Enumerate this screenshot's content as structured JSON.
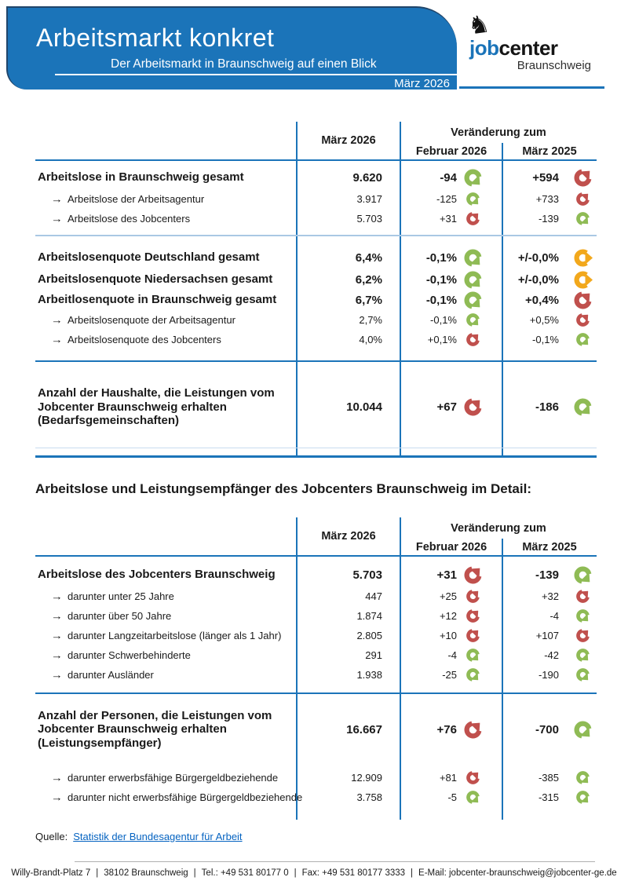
{
  "header": {
    "title": "Arbeitsmarkt konkret",
    "subtitle": "Der Arbeitsmarkt in Braunschweig auf einen Blick",
    "period": "März 2026",
    "logo": {
      "word_blue": "job",
      "word_black": "center",
      "city": "Braunschweig",
      "emblem_icon": "braunschweig-lion-icon"
    }
  },
  "colors": {
    "primary_blue": "#1b74b9",
    "light_blue": "#aac8e4",
    "trend_up_red": "#c0504d",
    "trend_down_green": "#8fbb55",
    "trend_neutral_yellow": "#f2a81c",
    "link_blue": "#0563c1"
  },
  "columns": {
    "current": "März 2026",
    "change_title": "Veränderung zum",
    "prev_month": "Februar 2026",
    "prev_year": "März 2025"
  },
  "table1": {
    "groups": [
      {
        "rows": [
          {
            "style": "bold",
            "label": "Arbeitslose in Braunschweig gesamt",
            "current": "9.620",
            "prev_month": {
              "value": "-94",
              "trend": "down"
            },
            "prev_year": {
              "value": "+594",
              "trend": "up"
            }
          },
          {
            "style": "sub",
            "label": "Arbeitslose der Arbeitsagentur",
            "current": "3.917",
            "prev_month": {
              "value": "-125",
              "trend": "down"
            },
            "prev_year": {
              "value": "+733",
              "trend": "up"
            }
          },
          {
            "style": "sub",
            "label": "Arbeitslose des Jobcenters",
            "current": "5.703",
            "prev_month": {
              "value": "+31",
              "trend": "up"
            },
            "prev_year": {
              "value": "-139",
              "trend": "down"
            }
          }
        ]
      },
      {
        "rows": [
          {
            "style": "bold",
            "label": "Arbeitslosenquote Deutschland gesamt",
            "current": "6,4%",
            "prev_month": {
              "value": "-0,1%",
              "trend": "down"
            },
            "prev_year": {
              "value": "+/-0,0%",
              "trend": "neutral"
            }
          },
          {
            "style": "bold",
            "label": "Arbeitslosenquote Niedersachsen gesamt",
            "current": "6,2%",
            "prev_month": {
              "value": "-0,1%",
              "trend": "down"
            },
            "prev_year": {
              "value": "+/-0,0%",
              "trend": "neutral"
            }
          },
          {
            "style": "bold",
            "label": "Arbeitlosenquote in Braunschweig gesamt",
            "current": "6,7%",
            "prev_month": {
              "value": "-0,1%",
              "trend": "down"
            },
            "prev_year": {
              "value": "+0,4%",
              "trend": "up"
            }
          },
          {
            "style": "sub",
            "label": "Arbeitslosenquote der Arbeitsagentur",
            "current": "2,7%",
            "prev_month": {
              "value": "-0,1%",
              "trend": "down"
            },
            "prev_year": {
              "value": "+0,5%",
              "trend": "up"
            }
          },
          {
            "style": "sub",
            "label": "Arbeitslosenquote des Jobcenters",
            "current": "4,0%",
            "prev_month": {
              "value": "+0,1%",
              "trend": "up"
            },
            "prev_year": {
              "value": "-0,1%",
              "trend": "down"
            }
          }
        ]
      },
      {
        "rows": [
          {
            "style": "block",
            "label": "Anzahl der Haushalte, die Leistungen vom Jobcenter Braunschweig erhalten (Bedarfsgemeinschaften)",
            "current": "10.044",
            "prev_month": {
              "value": "+67",
              "trend": "up"
            },
            "prev_year": {
              "value": "-186",
              "trend": "down"
            }
          }
        ]
      }
    ]
  },
  "section_title": "Arbeitslose und Leistungsempfänger des Jobcenters Braunschweig im Detail:",
  "table2": {
    "groups": [
      {
        "rows": [
          {
            "style": "bold",
            "label": "Arbeitslose des Jobcenters Braunschweig",
            "current": "5.703",
            "prev_month": {
              "value": "+31",
              "trend": "up"
            },
            "prev_year": {
              "value": "-139",
              "trend": "down"
            }
          },
          {
            "style": "sub",
            "label": "darunter unter 25 Jahre",
            "current": "447",
            "prev_month": {
              "value": "+25",
              "trend": "up"
            },
            "prev_year": {
              "value": "+32",
              "trend": "up"
            }
          },
          {
            "style": "sub",
            "label": "darunter über 50 Jahre",
            "current": "1.874",
            "prev_month": {
              "value": "+12",
              "trend": "up"
            },
            "prev_year": {
              "value": "-4",
              "trend": "down"
            }
          },
          {
            "style": "sub",
            "label": "darunter Langzeitarbeitslose (länger als 1 Jahr)",
            "current": "2.805",
            "prev_month": {
              "value": "+10",
              "trend": "up"
            },
            "prev_year": {
              "value": "+107",
              "trend": "up"
            }
          },
          {
            "style": "sub",
            "label": "darunter Schwerbehinderte",
            "current": "291",
            "prev_month": {
              "value": "-4",
              "trend": "down"
            },
            "prev_year": {
              "value": "-42",
              "trend": "down"
            }
          },
          {
            "style": "sub",
            "label": "darunter Ausländer",
            "current": "1.938",
            "prev_month": {
              "value": "-25",
              "trend": "down"
            },
            "prev_year": {
              "value": "-190",
              "trend": "down"
            }
          }
        ]
      },
      {
        "rows": [
          {
            "style": "block",
            "label": "Anzahl der Personen, die Leistungen vom Jobcenter Braunschweig erhalten (Leistungsempfänger)",
            "current": "16.667",
            "prev_month": {
              "value": "+76",
              "trend": "up"
            },
            "prev_year": {
              "value": "-700",
              "trend": "down"
            }
          },
          {
            "style": "sub",
            "label": "darunter erwerbsfähige Bürgergeldbeziehende",
            "current": "12.909",
            "prev_month": {
              "value": "+81",
              "trend": "up"
            },
            "prev_year": {
              "value": "-385",
              "trend": "down"
            }
          },
          {
            "style": "sub",
            "label": "darunter nicht erwerbsfähige Bürgergeldbeziehende",
            "current": "3.758",
            "prev_month": {
              "value": "-5",
              "trend": "down"
            },
            "prev_year": {
              "value": "-315",
              "trend": "down"
            }
          }
        ]
      }
    ]
  },
  "source": {
    "label": "Quelle:",
    "link_text": "Statistik der Bundesagentur für Arbeit"
  },
  "footer": {
    "separator": "|",
    "items": [
      "Willy-Brandt-Platz 7",
      "38102 Braunschweig",
      "Tel.: +49 531 80177 0",
      "Fax: +49 531 80177 3333",
      "E-Mail: jobcenter-braunschweig@jobcenter-ge.de"
    ]
  }
}
